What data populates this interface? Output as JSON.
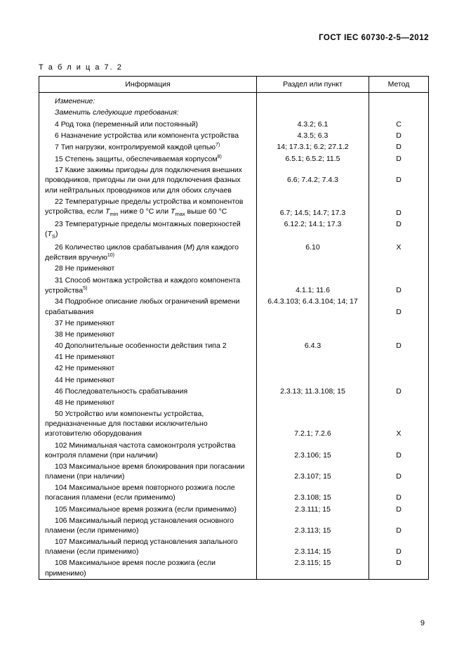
{
  "doc_header": "ГОСТ IEC  60730-2-5—2012",
  "table_label": "Т а б л и ц а 7. 2",
  "columns": {
    "info": "Информация",
    "section": "Раздел или пункт",
    "method": "Метод"
  },
  "rows": [
    {
      "info": "Изменение:",
      "section": "",
      "method": "",
      "italic": true,
      "indent": true
    },
    {
      "info": "Заменить следующие требования:",
      "section": "",
      "method": "",
      "italic": true,
      "indent": true
    },
    {
      "info": "4 Род тока (переменный или постоянный)",
      "section": "4.3.2; 6.1",
      "method": "C",
      "indent": true
    },
    {
      "info": "6 Назначение устройства или компонента устройства",
      "section": "4.3.5;  6.3",
      "method": "D",
      "indent": true
    },
    {
      "info_html": "7 Тип нагрузки, контролируемой каждой цепью<span class=\"sup\">7)</span>",
      "section": "14; 17.3.1; 6.2;  27.1.2",
      "method": "D",
      "indent": true
    },
    {
      "info_html": "15 Степень защиты, обеспечиваемая корпусом<span class=\"sup\">8)</span>",
      "section": "6.5.1; 6.5.2; 11.5",
      "method": "D",
      "indent": true
    },
    {
      "info": "17 Какие зажимы пригодны для подключения внешних проводников, пригодны ли они для подключения фазных или нейтральных проводников или для обоих случаев",
      "section": "6.6; 7.4.2; 7.4.3",
      "method": "D",
      "indent": true,
      "justify": true,
      "valign_section": "middle"
    },
    {
      "info_html": "22 Температурные пределы устройства и компонентов устройства, если <i>T</i><span class=\"sub\">min</span> ниже 0 °C или <i>T</i><span class=\"sub\">max</span> выше   60 °C",
      "section": "6.7; 14.5; 14.7; 17.3",
      "method": "D",
      "indent": true,
      "justify": true,
      "valign_section": "bottom"
    },
    {
      "info_html": "23 Температурные пределы монтажных  поверхностей (<i>T</i><span class=\"sub\">S</span>)",
      "section": "6.12.2; 14.1; 17.3",
      "method": "D",
      "indent": true
    },
    {
      "info_html": "26 Количество циклов срабатывания (<i>M</i>) для каждого действия вручную<span class=\"sup\">10)</span>",
      "section": "6.10",
      "method": "X",
      "indent": true,
      "justify": true
    },
    {
      "info": "28 Не применяют",
      "section": "",
      "method": "",
      "indent": true
    },
    {
      "info_html": "31 Способ монтажа устройства и каждого компонента устройства<span class=\"sup\">5)</span>",
      "section": "4.1.1; 11.6",
      "method": "D",
      "indent": true,
      "justify": true,
      "valign_section": "bottom"
    },
    {
      "info": "34 Подробное описание любых ограничений времени срабатывания",
      "section": "6.4.3.103; 6.4.3.104; 14; 17",
      "method": "D",
      "indent": true,
      "justify": true,
      "valign_method": "bottom"
    },
    {
      "info": "37 Не применяют",
      "section": "",
      "method": "",
      "indent": true
    },
    {
      "info": "38 Не применяют",
      "section": "",
      "method": "",
      "indent": true
    },
    {
      "info": "40 Дополнительные особенности действия типа 2",
      "section": "6.4.3",
      "method": "D",
      "indent": true
    },
    {
      "info": "41 Не применяют",
      "section": "",
      "method": "",
      "indent": true
    },
    {
      "info": "42 Не применяют",
      "section": "",
      "method": "",
      "indent": true
    },
    {
      "info": "44 Не применяют",
      "section": "",
      "method": "",
      "indent": true
    },
    {
      "info": "46 Последовательность срабатывания",
      "section": "2.3.13; 11.3.108; 15",
      "method": "D",
      "indent": true
    },
    {
      "info": "48 Не применяют",
      "section": "",
      "method": "",
      "indent": true
    },
    {
      "info": "50 Устройство или компоненты устройства, предназначенные для поставки исключительно изготовителю оборудования",
      "section": "7.2.1; 7.2.6",
      "method": "X",
      "indent": true,
      "justify": true,
      "valign_section": "bottom"
    },
    {
      "info": "102 Минимальная частота самоконтроля устройства контроля пламени (при наличии)",
      "section": "2.3.106; 15",
      "method": "D",
      "indent": true,
      "justify": true,
      "valign_section": "bottom"
    },
    {
      "info": "103 Максимальное время блокирования при погасании пламени (при наличии)",
      "section": "2.3.107; 15",
      "method": "D",
      "indent": true,
      "justify": true,
      "valign_section": "bottom"
    },
    {
      "info": "104 Максимальное время повторного розжига после погасания пламени (если применимо)",
      "section": "2.3.108; 15",
      "method": "D",
      "indent": true,
      "justify": true,
      "valign_section": "bottom"
    },
    {
      "info": "105 Максимальное время розжига (если применимо)",
      "section": "2.3.111; 15",
      "method": "D",
      "indent": true
    },
    {
      "info": "106 Максимальный период установления основного пламени (если применимо)",
      "section": "2.3.113; 15",
      "method": "D",
      "indent": true,
      "justify": true,
      "valign_section": "bottom"
    },
    {
      "info": "107 Максимальный период установления запального пламени (если применимо)",
      "section": "2.3.114; 15",
      "method": "D",
      "indent": true,
      "justify": true,
      "valign_section": "bottom"
    },
    {
      "info": "108 Максимальное время после розжига (если применимо)",
      "section": "2.3.115; 15",
      "method": "D",
      "indent": true,
      "last": true
    }
  ],
  "page_number": "9"
}
